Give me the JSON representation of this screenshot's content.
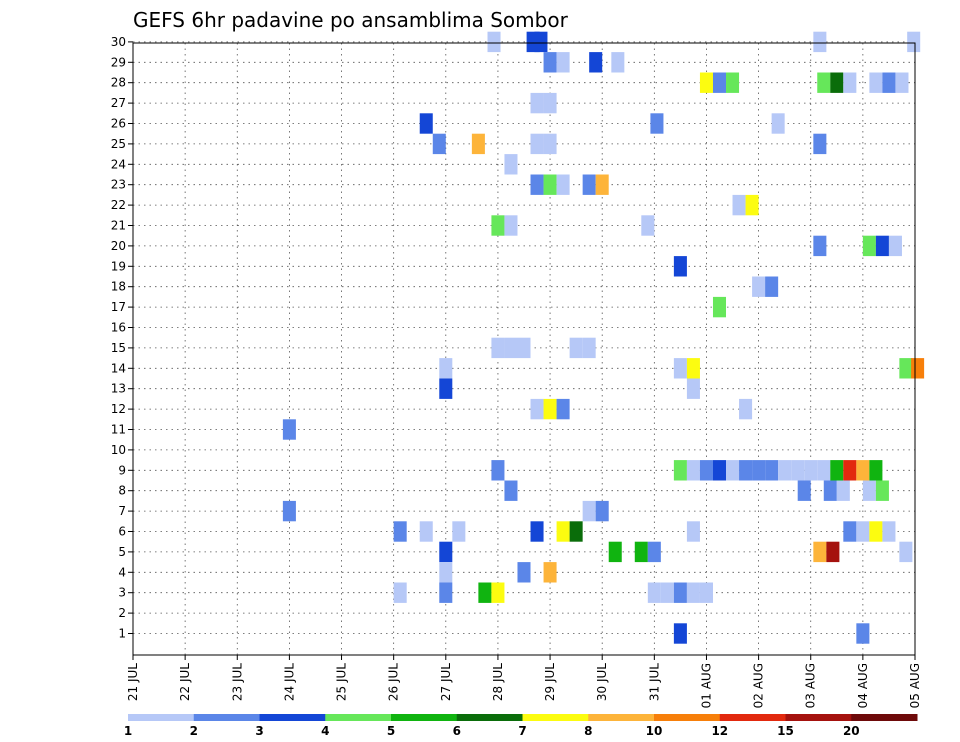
{
  "chart_data": {
    "type": "heatmap",
    "title": "GEFS 6hr padavine po ansamblima Sombor",
    "xlabel": "",
    "ylabel": "",
    "x_tick_labels": [
      "21 JUL",
      "22 JUL",
      "23 JUL",
      "24 JUL",
      "25 JUL",
      "26 JUL",
      "27 JUL",
      "28 JUL",
      "29 JUL",
      "30 JUL",
      "31 JUL",
      "01 AUG",
      "02 AUG",
      "03 AUG",
      "04 AUG",
      "05 AUG"
    ],
    "x_unit": "6-hour steps from 21 JUL 00Z (4 steps per day)",
    "xlim": [
      0,
      60
    ],
    "y_tick_labels": [
      "1",
      "2",
      "3",
      "4",
      "5",
      "6",
      "7",
      "8",
      "9",
      "10",
      "11",
      "12",
      "13",
      "14",
      "15",
      "16",
      "17",
      "18",
      "19",
      "20",
      "21",
      "22",
      "23",
      "24",
      "25",
      "26",
      "27",
      "28",
      "29",
      "30"
    ],
    "ylim": [
      1,
      30
    ],
    "grid": true,
    "colorbar": {
      "placement": "bottom",
      "bounds": [
        "1",
        "2",
        "3",
        "4",
        "5",
        "6",
        "7",
        "8",
        "10",
        "12",
        "15",
        "20"
      ],
      "colors": [
        "#b6c8f7",
        "#5b86e8",
        "#1446d6",
        "#66e75a",
        "#10b410",
        "#0a6d0a",
        "#fcfc10",
        "#fdb43a",
        "#f77f0a",
        "#e2290e",
        "#a5120e",
        "#6e0a0a"
      ]
    },
    "cells": [
      {
        "m": 30,
        "t": 27.7,
        "c": 0
      },
      {
        "m": 30,
        "t": 30.7,
        "c": 2
      },
      {
        "m": 30,
        "t": 31.3,
        "c": 2
      },
      {
        "m": 30,
        "t": 52.7,
        "c": 0
      },
      {
        "m": 30,
        "t": 59.9,
        "c": 0
      },
      {
        "m": 29,
        "t": 32.0,
        "c": 1
      },
      {
        "m": 29,
        "t": 33.0,
        "c": 0
      },
      {
        "m": 29,
        "t": 35.5,
        "c": 2
      },
      {
        "m": 29,
        "t": 37.2,
        "c": 0
      },
      {
        "m": 28,
        "t": 44.0,
        "c": 6
      },
      {
        "m": 28,
        "t": 45.0,
        "c": 1
      },
      {
        "m": 28,
        "t": 46.0,
        "c": 3
      },
      {
        "m": 28,
        "t": 53.0,
        "c": 3
      },
      {
        "m": 28,
        "t": 54.0,
        "c": 5
      },
      {
        "m": 28,
        "t": 55.0,
        "c": 0
      },
      {
        "m": 28,
        "t": 57.0,
        "c": 0
      },
      {
        "m": 28,
        "t": 58.0,
        "c": 1
      },
      {
        "m": 28,
        "t": 59.0,
        "c": 0
      },
      {
        "m": 27,
        "t": 31.0,
        "c": 0
      },
      {
        "m": 27,
        "t": 32.0,
        "c": 0
      },
      {
        "m": 26,
        "t": 22.5,
        "c": 2
      },
      {
        "m": 26,
        "t": 40.2,
        "c": 1
      },
      {
        "m": 26,
        "t": 49.5,
        "c": 0
      },
      {
        "m": 25,
        "t": 23.5,
        "c": 1
      },
      {
        "m": 25,
        "t": 26.5,
        "c": 7
      },
      {
        "m": 25,
        "t": 31.0,
        "c": 0
      },
      {
        "m": 25,
        "t": 32.0,
        "c": 0
      },
      {
        "m": 25,
        "t": 52.7,
        "c": 1
      },
      {
        "m": 24,
        "t": 29.0,
        "c": 0
      },
      {
        "m": 23,
        "t": 31.0,
        "c": 1
      },
      {
        "m": 23,
        "t": 32.0,
        "c": 3
      },
      {
        "m": 23,
        "t": 33.0,
        "c": 0
      },
      {
        "m": 23,
        "t": 35.0,
        "c": 1
      },
      {
        "m": 23,
        "t": 36.0,
        "c": 7
      },
      {
        "m": 22,
        "t": 46.5,
        "c": 0
      },
      {
        "m": 22,
        "t": 47.5,
        "c": 6
      },
      {
        "m": 21,
        "t": 28.0,
        "c": 3
      },
      {
        "m": 21,
        "t": 29.0,
        "c": 0
      },
      {
        "m": 21,
        "t": 39.5,
        "c": 0
      },
      {
        "m": 20,
        "t": 52.7,
        "c": 1
      },
      {
        "m": 20,
        "t": 56.5,
        "c": 3
      },
      {
        "m": 20,
        "t": 57.5,
        "c": 2
      },
      {
        "m": 20,
        "t": 58.5,
        "c": 0
      },
      {
        "m": 19,
        "t": 42.0,
        "c": 2
      },
      {
        "m": 18,
        "t": 48.0,
        "c": 0
      },
      {
        "m": 18,
        "t": 49.0,
        "c": 1
      },
      {
        "m": 17,
        "t": 45.0,
        "c": 3
      },
      {
        "m": 15,
        "t": 28.0,
        "c": 0
      },
      {
        "m": 15,
        "t": 29.0,
        "c": 0
      },
      {
        "m": 15,
        "t": 30.0,
        "c": 0
      },
      {
        "m": 15,
        "t": 34.0,
        "c": 0
      },
      {
        "m": 15,
        "t": 35.0,
        "c": 0
      },
      {
        "m": 14,
        "t": 24.0,
        "c": 0
      },
      {
        "m": 14,
        "t": 42.0,
        "c": 0
      },
      {
        "m": 14,
        "t": 43.0,
        "c": 6
      },
      {
        "m": 14,
        "t": 59.3,
        "c": 3
      },
      {
        "m": 14,
        "t": 60.2,
        "c": 8
      },
      {
        "m": 13,
        "t": 24.0,
        "c": 2
      },
      {
        "m": 13,
        "t": 43.0,
        "c": 0
      },
      {
        "m": 12,
        "t": 31.0,
        "c": 0
      },
      {
        "m": 12,
        "t": 32.0,
        "c": 6
      },
      {
        "m": 12,
        "t": 33.0,
        "c": 1
      },
      {
        "m": 12,
        "t": 47.0,
        "c": 0
      },
      {
        "m": 11,
        "t": 12.0,
        "c": 1
      },
      {
        "m": 9,
        "t": 28.0,
        "c": 1
      },
      {
        "m": 9,
        "t": 42.0,
        "c": 3
      },
      {
        "m": 9,
        "t": 43.0,
        "c": 0
      },
      {
        "m": 9,
        "t": 44.0,
        "c": 1
      },
      {
        "m": 9,
        "t": 45.0,
        "c": 2
      },
      {
        "m": 9,
        "t": 46.0,
        "c": 0
      },
      {
        "m": 9,
        "t": 47.0,
        "c": 1
      },
      {
        "m": 9,
        "t": 48.0,
        "c": 1
      },
      {
        "m": 9,
        "t": 49.0,
        "c": 1
      },
      {
        "m": 9,
        "t": 50.0,
        "c": 0
      },
      {
        "m": 9,
        "t": 51.0,
        "c": 0
      },
      {
        "m": 9,
        "t": 52.0,
        "c": 0
      },
      {
        "m": 9,
        "t": 53.0,
        "c": 0
      },
      {
        "m": 9,
        "t": 54.0,
        "c": 4
      },
      {
        "m": 9,
        "t": 55.0,
        "c": 9
      },
      {
        "m": 9,
        "t": 56.0,
        "c": 7
      },
      {
        "m": 9,
        "t": 57.0,
        "c": 4
      },
      {
        "m": 8,
        "t": 29.0,
        "c": 1
      },
      {
        "m": 8,
        "t": 51.5,
        "c": 1
      },
      {
        "m": 8,
        "t": 53.5,
        "c": 1
      },
      {
        "m": 8,
        "t": 54.5,
        "c": 0
      },
      {
        "m": 8,
        "t": 56.5,
        "c": 0
      },
      {
        "m": 8,
        "t": 57.5,
        "c": 3
      },
      {
        "m": 7,
        "t": 12.0,
        "c": 1
      },
      {
        "m": 7,
        "t": 35.0,
        "c": 0
      },
      {
        "m": 7,
        "t": 36.0,
        "c": 1
      },
      {
        "m": 6,
        "t": 20.5,
        "c": 1
      },
      {
        "m": 6,
        "t": 22.5,
        "c": 0
      },
      {
        "m": 6,
        "t": 25.0,
        "c": 0
      },
      {
        "m": 6,
        "t": 31.0,
        "c": 2
      },
      {
        "m": 6,
        "t": 33.0,
        "c": 6
      },
      {
        "m": 6,
        "t": 34.0,
        "c": 5
      },
      {
        "m": 6,
        "t": 43.0,
        "c": 0
      },
      {
        "m": 6,
        "t": 55.0,
        "c": 1
      },
      {
        "m": 6,
        "t": 56.0,
        "c": 0
      },
      {
        "m": 6,
        "t": 57.0,
        "c": 6
      },
      {
        "m": 6,
        "t": 58.0,
        "c": 0
      },
      {
        "m": 5,
        "t": 24.0,
        "c": 2
      },
      {
        "m": 5,
        "t": 37.0,
        "c": 4
      },
      {
        "m": 5,
        "t": 39.0,
        "c": 4
      },
      {
        "m": 5,
        "t": 40.0,
        "c": 1
      },
      {
        "m": 5,
        "t": 52.7,
        "c": 7
      },
      {
        "m": 5,
        "t": 53.7,
        "c": 10
      },
      {
        "m": 5,
        "t": 59.3,
        "c": 0
      },
      {
        "m": 4,
        "t": 24.0,
        "c": 0
      },
      {
        "m": 4,
        "t": 30.0,
        "c": 1
      },
      {
        "m": 4,
        "t": 32.0,
        "c": 7
      },
      {
        "m": 3,
        "t": 20.5,
        "c": 0
      },
      {
        "m": 3,
        "t": 24.0,
        "c": 1
      },
      {
        "m": 3,
        "t": 27.0,
        "c": 4
      },
      {
        "m": 3,
        "t": 28.0,
        "c": 6
      },
      {
        "m": 3,
        "t": 40.0,
        "c": 0
      },
      {
        "m": 3,
        "t": 41.0,
        "c": 0
      },
      {
        "m": 3,
        "t": 42.0,
        "c": 1
      },
      {
        "m": 3,
        "t": 43.0,
        "c": 0
      },
      {
        "m": 3,
        "t": 44.0,
        "c": 0
      },
      {
        "m": 1,
        "t": 42.0,
        "c": 2
      },
      {
        "m": 1,
        "t": 56.0,
        "c": 1
      }
    ]
  }
}
